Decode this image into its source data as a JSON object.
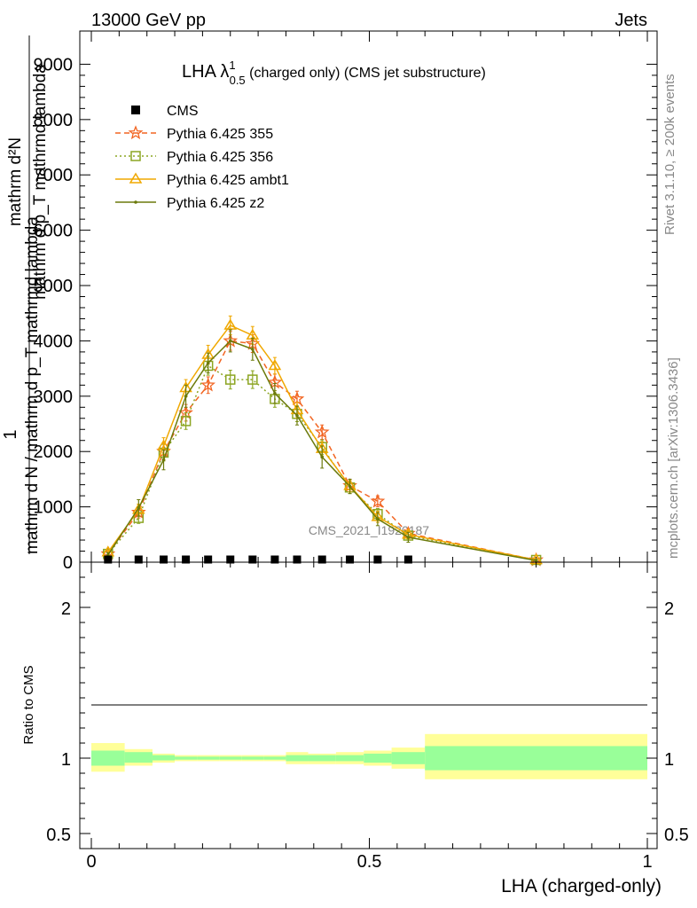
{
  "header": {
    "left": "13000 GeV pp",
    "right": "Jets"
  },
  "side": {
    "rivet": "Rivet 3.1.10, ≥ 200k events",
    "mcplots": "mcplots.cern.ch [arXiv:1306.3436]"
  },
  "watermark": "CMS_2021_I1920187",
  "chart_data": {
    "type": "line",
    "title_main": "LHA λ",
    "title_sup": "1",
    "title_sub": "0.5",
    "title_rest": " (charged only) (CMS jet substructure)",
    "xlabel": "LHA (charged-only)",
    "ylabel_top": "1",
    "ylabel_bottom": "mathrm d N / mathrm d p_T mathrmd lambda",
    "ylabel_frac_num": "mathrm d²N",
    "ylabel_frac_den": "mathrm d p_T mathrmd lambda",
    "xlim": [
      0,
      1
    ],
    "ylim": [
      0,
      9600
    ],
    "y_ticks": [
      0,
      1000,
      2000,
      3000,
      4000,
      5000,
      6000,
      7000,
      8000,
      9000
    ],
    "y_tick_labels": [
      "0",
      "1000",
      "2000",
      "3000",
      "4000",
      "5000",
      "6000",
      "7000",
      "8000",
      "9000"
    ],
    "x_ticks": [
      0,
      0.5,
      1
    ],
    "x_tick_labels": [
      "0",
      "0.5",
      "1"
    ],
    "cms": {
      "name": "CMS",
      "x": [
        0.03,
        0.085,
        0.13,
        0.17,
        0.21,
        0.25,
        0.29,
        0.33,
        0.37,
        0.415,
        0.465,
        0.515,
        0.57
      ],
      "y": [
        0,
        0,
        0,
        0,
        0,
        0,
        0,
        0,
        0,
        0,
        0,
        0,
        0
      ]
    },
    "series": [
      {
        "name": "Pythia 6.425 355",
        "color": "#f26522",
        "marker": "star",
        "dash": "6,4",
        "x": [
          0.03,
          0.085,
          0.13,
          0.17,
          0.21,
          0.25,
          0.29,
          0.33,
          0.37,
          0.415,
          0.465,
          0.515,
          0.57,
          0.8
        ],
        "y": [
          150,
          900,
          2000,
          2700,
          3200,
          4000,
          3950,
          3250,
          2950,
          2350,
          1380,
          1100,
          520,
          40
        ],
        "err": [
          40,
          100,
          150,
          150,
          150,
          170,
          160,
          150,
          140,
          130,
          110,
          100,
          80,
          20
        ]
      },
      {
        "name": "Pythia 6.425 356",
        "color": "#8ca522",
        "marker": "square",
        "dash": "2,3",
        "x": [
          0.03,
          0.085,
          0.13,
          0.17,
          0.21,
          0.25,
          0.29,
          0.33,
          0.37,
          0.415,
          0.465,
          0.515,
          0.57,
          0.8
        ],
        "y": [
          150,
          800,
          1980,
          2550,
          3550,
          3300,
          3300,
          2950,
          2680,
          2080,
          1350,
          870,
          480,
          40
        ],
        "err": [
          40,
          100,
          150,
          150,
          170,
          170,
          160,
          150,
          140,
          130,
          110,
          100,
          80,
          20
        ]
      },
      {
        "name": "Pythia 6.425 ambt1",
        "color": "#f0a800",
        "marker": "triangle",
        "dash": "",
        "x": [
          0.03,
          0.085,
          0.13,
          0.17,
          0.21,
          0.25,
          0.29,
          0.33,
          0.37,
          0.415,
          0.465,
          0.515,
          0.57,
          0.8
        ],
        "y": [
          180,
          950,
          2100,
          3150,
          3750,
          4280,
          4100,
          3550,
          2750,
          2050,
          1380,
          820,
          500,
          40
        ],
        "err": [
          40,
          100,
          150,
          150,
          170,
          170,
          160,
          150,
          140,
          130,
          110,
          100,
          80,
          20
        ]
      },
      {
        "name": "Pythia 6.425 z2",
        "color": "#6b7a0b",
        "marker": "dot",
        "dash": "",
        "x": [
          0.03,
          0.085,
          0.13,
          0.17,
          0.21,
          0.25,
          0.29,
          0.33,
          0.37,
          0.415,
          0.465,
          0.515,
          0.57,
          0.8
        ],
        "y": [
          130,
          980,
          1850,
          3000,
          3600,
          4000,
          3850,
          3050,
          2650,
          1900,
          1370,
          780,
          450,
          30
        ],
        "err": [
          40,
          150,
          180,
          200,
          180,
          200,
          200,
          180,
          170,
          200,
          130,
          120,
          90,
          20
        ]
      }
    ],
    "ratio": {
      "ylabel": "Ratio to CMS",
      "ylim": [
        0.4,
        2.3
      ],
      "y_ticks": [
        0.5,
        1,
        2
      ],
      "y_tick_labels": [
        "0.5",
        "1",
        "2"
      ],
      "bins": [
        {
          "lo": 0.0,
          "hi": 0.06,
          "inner": [
            0.95,
            1.05
          ],
          "outer": [
            0.91,
            1.1
          ]
        },
        {
          "lo": 0.06,
          "hi": 0.11,
          "inner": [
            0.97,
            1.04
          ],
          "outer": [
            0.95,
            1.06
          ]
        },
        {
          "lo": 0.11,
          "hi": 0.15,
          "inner": [
            0.985,
            1.02
          ],
          "outer": [
            0.97,
            1.03
          ]
        },
        {
          "lo": 0.15,
          "hi": 0.19,
          "inner": [
            0.99,
            1.01
          ],
          "outer": [
            0.98,
            1.02
          ]
        },
        {
          "lo": 0.19,
          "hi": 0.23,
          "inner": [
            0.99,
            1.01
          ],
          "outer": [
            0.98,
            1.02
          ]
        },
        {
          "lo": 0.23,
          "hi": 0.27,
          "inner": [
            0.99,
            1.01
          ],
          "outer": [
            0.98,
            1.02
          ]
        },
        {
          "lo": 0.27,
          "hi": 0.31,
          "inner": [
            0.99,
            1.01
          ],
          "outer": [
            0.98,
            1.02
          ]
        },
        {
          "lo": 0.31,
          "hi": 0.35,
          "inner": [
            0.99,
            1.01
          ],
          "outer": [
            0.98,
            1.02
          ]
        },
        {
          "lo": 0.35,
          "hi": 0.39,
          "inner": [
            0.98,
            1.02
          ],
          "outer": [
            0.96,
            1.04
          ]
        },
        {
          "lo": 0.39,
          "hi": 0.44,
          "inner": [
            0.98,
            1.02
          ],
          "outer": [
            0.96,
            1.03
          ]
        },
        {
          "lo": 0.44,
          "hi": 0.49,
          "inner": [
            0.98,
            1.02
          ],
          "outer": [
            0.96,
            1.04
          ]
        },
        {
          "lo": 0.49,
          "hi": 0.54,
          "inner": [
            0.97,
            1.03
          ],
          "outer": [
            0.95,
            1.05
          ]
        },
        {
          "lo": 0.54,
          "hi": 0.6,
          "inner": [
            0.96,
            1.04
          ],
          "outer": [
            0.93,
            1.07
          ]
        },
        {
          "lo": 0.6,
          "hi": 1.0,
          "inner": [
            0.92,
            1.08
          ],
          "outer": [
            0.86,
            1.16
          ]
        }
      ]
    },
    "colors": {
      "band_inner": "#99ff99",
      "band_outer": "#ffff99",
      "cms": "#000000"
    }
  }
}
